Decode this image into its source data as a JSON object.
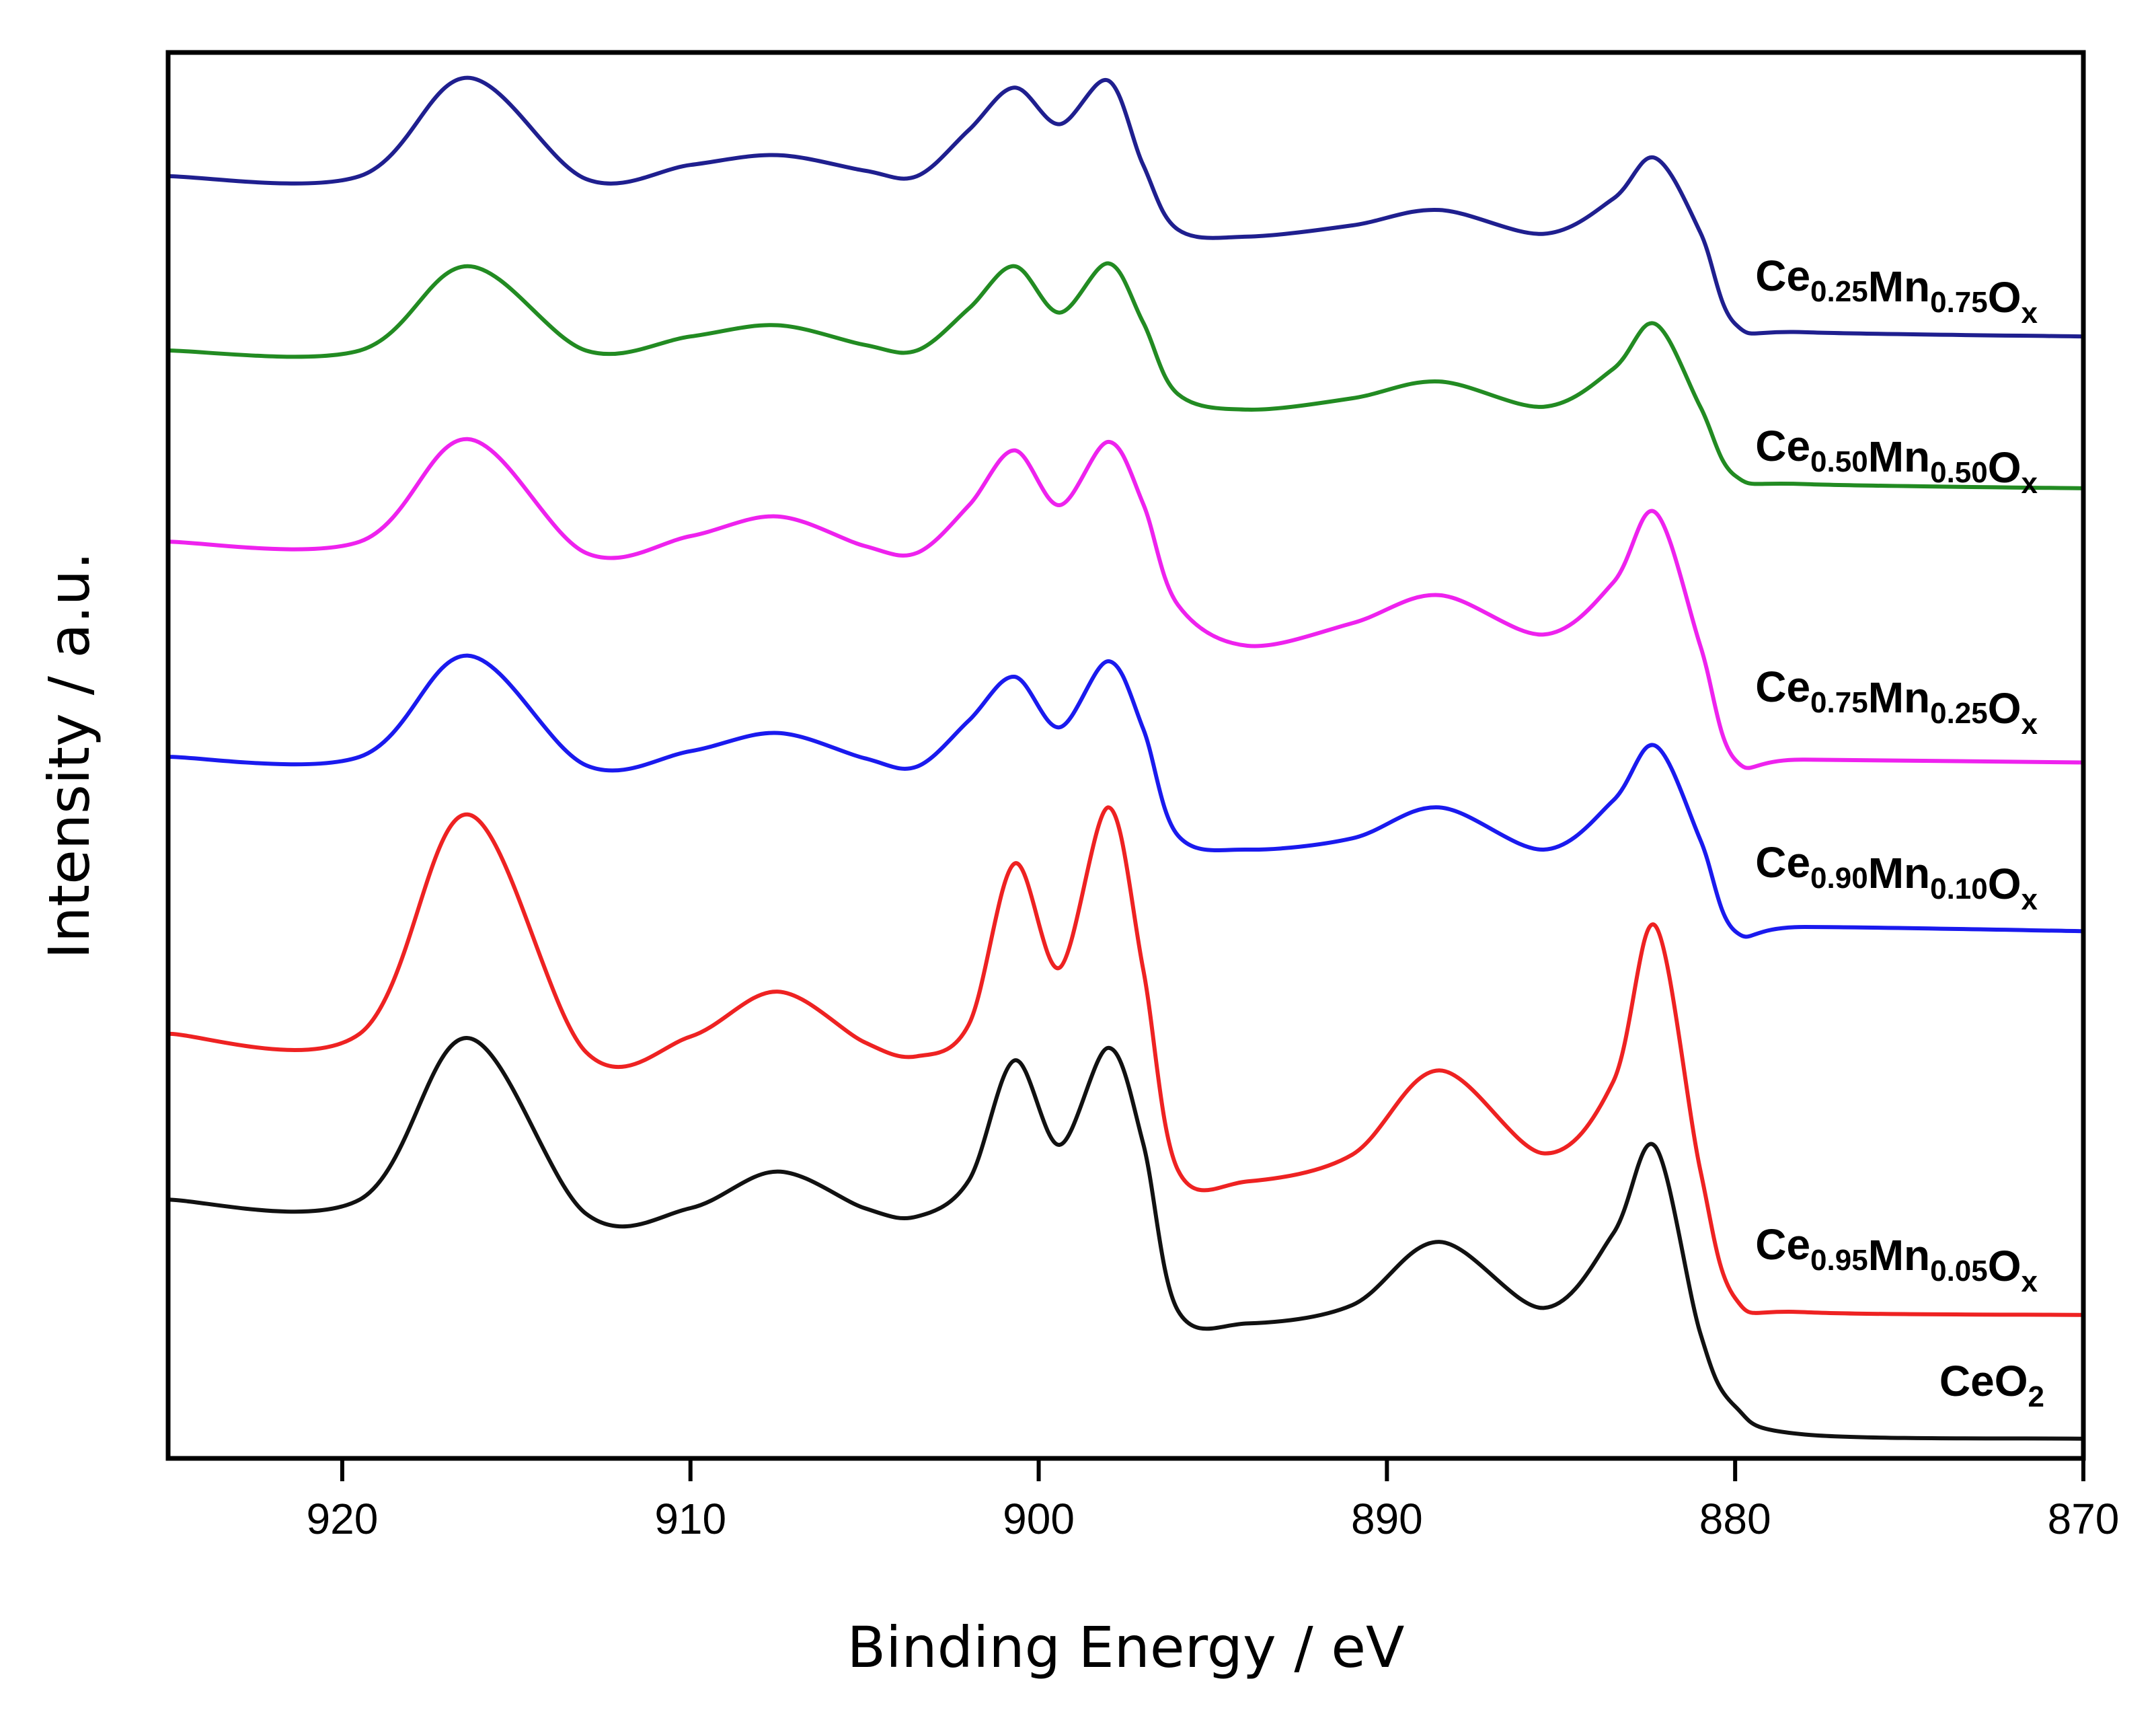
{
  "chart_data": {
    "type": "line",
    "title": "",
    "xlabel": "Binding Energy / eV",
    "ylabel": "Intensity / a.u.",
    "xlim": [
      925,
      870
    ],
    "ylim": [
      0,
      100
    ],
    "x_reversed": true,
    "y_ticks_shown": false,
    "grid": false,
    "x_ticks": [
      920,
      910,
      900,
      890,
      880,
      870
    ],
    "x_tick_labels": [
      "920",
      "910",
      "900",
      "890",
      "880",
      "870"
    ],
    "x": [
      925,
      919.5,
      916.4,
      913,
      910,
      907.5,
      905,
      903.5,
      902,
      900.7,
      899.4,
      898,
      897,
      896,
      894,
      891,
      888.5,
      885.5,
      883.5,
      882.3,
      881,
      880,
      878,
      870
    ],
    "series": [
      {
        "name": "Ce0.25Mn0.75Ox",
        "label_parts": [
          [
            "Ce",
            "0.25"
          ],
          [
            "Mn",
            "0.75"
          ],
          [
            "O",
            "x"
          ]
        ],
        "color": "#1f1f8f",
        "values": [
          91.2,
          91.2,
          98.2,
          91.0,
          92.0,
          92.7,
          91.6,
          91.2,
          94.5,
          97.5,
          94.9,
          98.0,
          92.0,
          87.4,
          86.9,
          87.7,
          88.8,
          87.1,
          89.6,
          92.5,
          87.2,
          80.7,
          80.1,
          79.8
        ]
      },
      {
        "name": "Ce0.50Mn0.50Ox",
        "label_parts": [
          [
            "Ce",
            "0.50"
          ],
          [
            "Mn",
            "0.50"
          ],
          [
            "O",
            "x"
          ]
        ],
        "color": "#228b22",
        "values": [
          78.8,
          78.8,
          84.8,
          78.8,
          79.8,
          80.6,
          79.2,
          78.8,
          81.8,
          84.8,
          81.5,
          85.0,
          80.8,
          75.7,
          74.6,
          75.4,
          76.6,
          74.8,
          77.5,
          80.7,
          74.8,
          69.9,
          69.3,
          69.0
        ]
      },
      {
        "name": "Ce0.75Mn0.25Ox",
        "label_parts": [
          [
            "Ce",
            "0.75"
          ],
          [
            "Mn",
            "0.25"
          ],
          [
            "O",
            "x"
          ]
        ],
        "color": "#ee22ee",
        "values": [
          65.2,
          65.2,
          72.5,
          64.4,
          65.6,
          67.0,
          64.9,
          64.4,
          67.8,
          71.7,
          67.8,
          72.3,
          67.9,
          60.7,
          57.8,
          59.4,
          61.4,
          58.6,
          62.3,
          67.3,
          57.8,
          49.7,
          49.7,
          49.5
        ]
      },
      {
        "name": "Ce0.90Mn0.10Ox",
        "label_parts": [
          [
            "Ce",
            "0.90"
          ],
          [
            "Mn",
            "0.10"
          ],
          [
            "O",
            "x"
          ]
        ],
        "color": "#1a1aee",
        "values": [
          49.9,
          49.9,
          57.1,
          49.3,
          50.3,
          51.6,
          49.8,
          49.2,
          52.5,
          55.6,
          52.0,
          56.7,
          51.9,
          44.3,
          43.3,
          44.1,
          46.3,
          43.3,
          46.8,
          50.7,
          44.0,
          37.5,
          37.8,
          37.5
        ]
      },
      {
        "name": "Ce0.95Mn0.05Ox",
        "label_parts": [
          [
            "Ce",
            "0.95"
          ],
          [
            "Mn",
            "0.05"
          ],
          [
            "O",
            "x"
          ]
        ],
        "color": "#ee2222",
        "values": [
          30.2,
          30.2,
          45.8,
          28.9,
          30.0,
          33.2,
          29.6,
          28.6,
          30.9,
          42.3,
          34.9,
          46.3,
          34.8,
          20.5,
          19.7,
          21.6,
          27.6,
          21.7,
          26.8,
          37.9,
          20.5,
          11.4,
          10.4,
          10.2
        ]
      },
      {
        "name": "CeO2",
        "label_parts": [
          [
            "CeO",
            "2"
          ]
        ],
        "color": "#111111",
        "values": [
          18.4,
          18.4,
          29.9,
          17.4,
          17.8,
          20.4,
          17.8,
          17.2,
          19.8,
          28.3,
          22.3,
          29.2,
          22.4,
          10.5,
          9.6,
          10.9,
          15.4,
          10.7,
          16.0,
          22.2,
          8.9,
          3.7,
          1.7,
          1.4
        ]
      }
    ]
  }
}
